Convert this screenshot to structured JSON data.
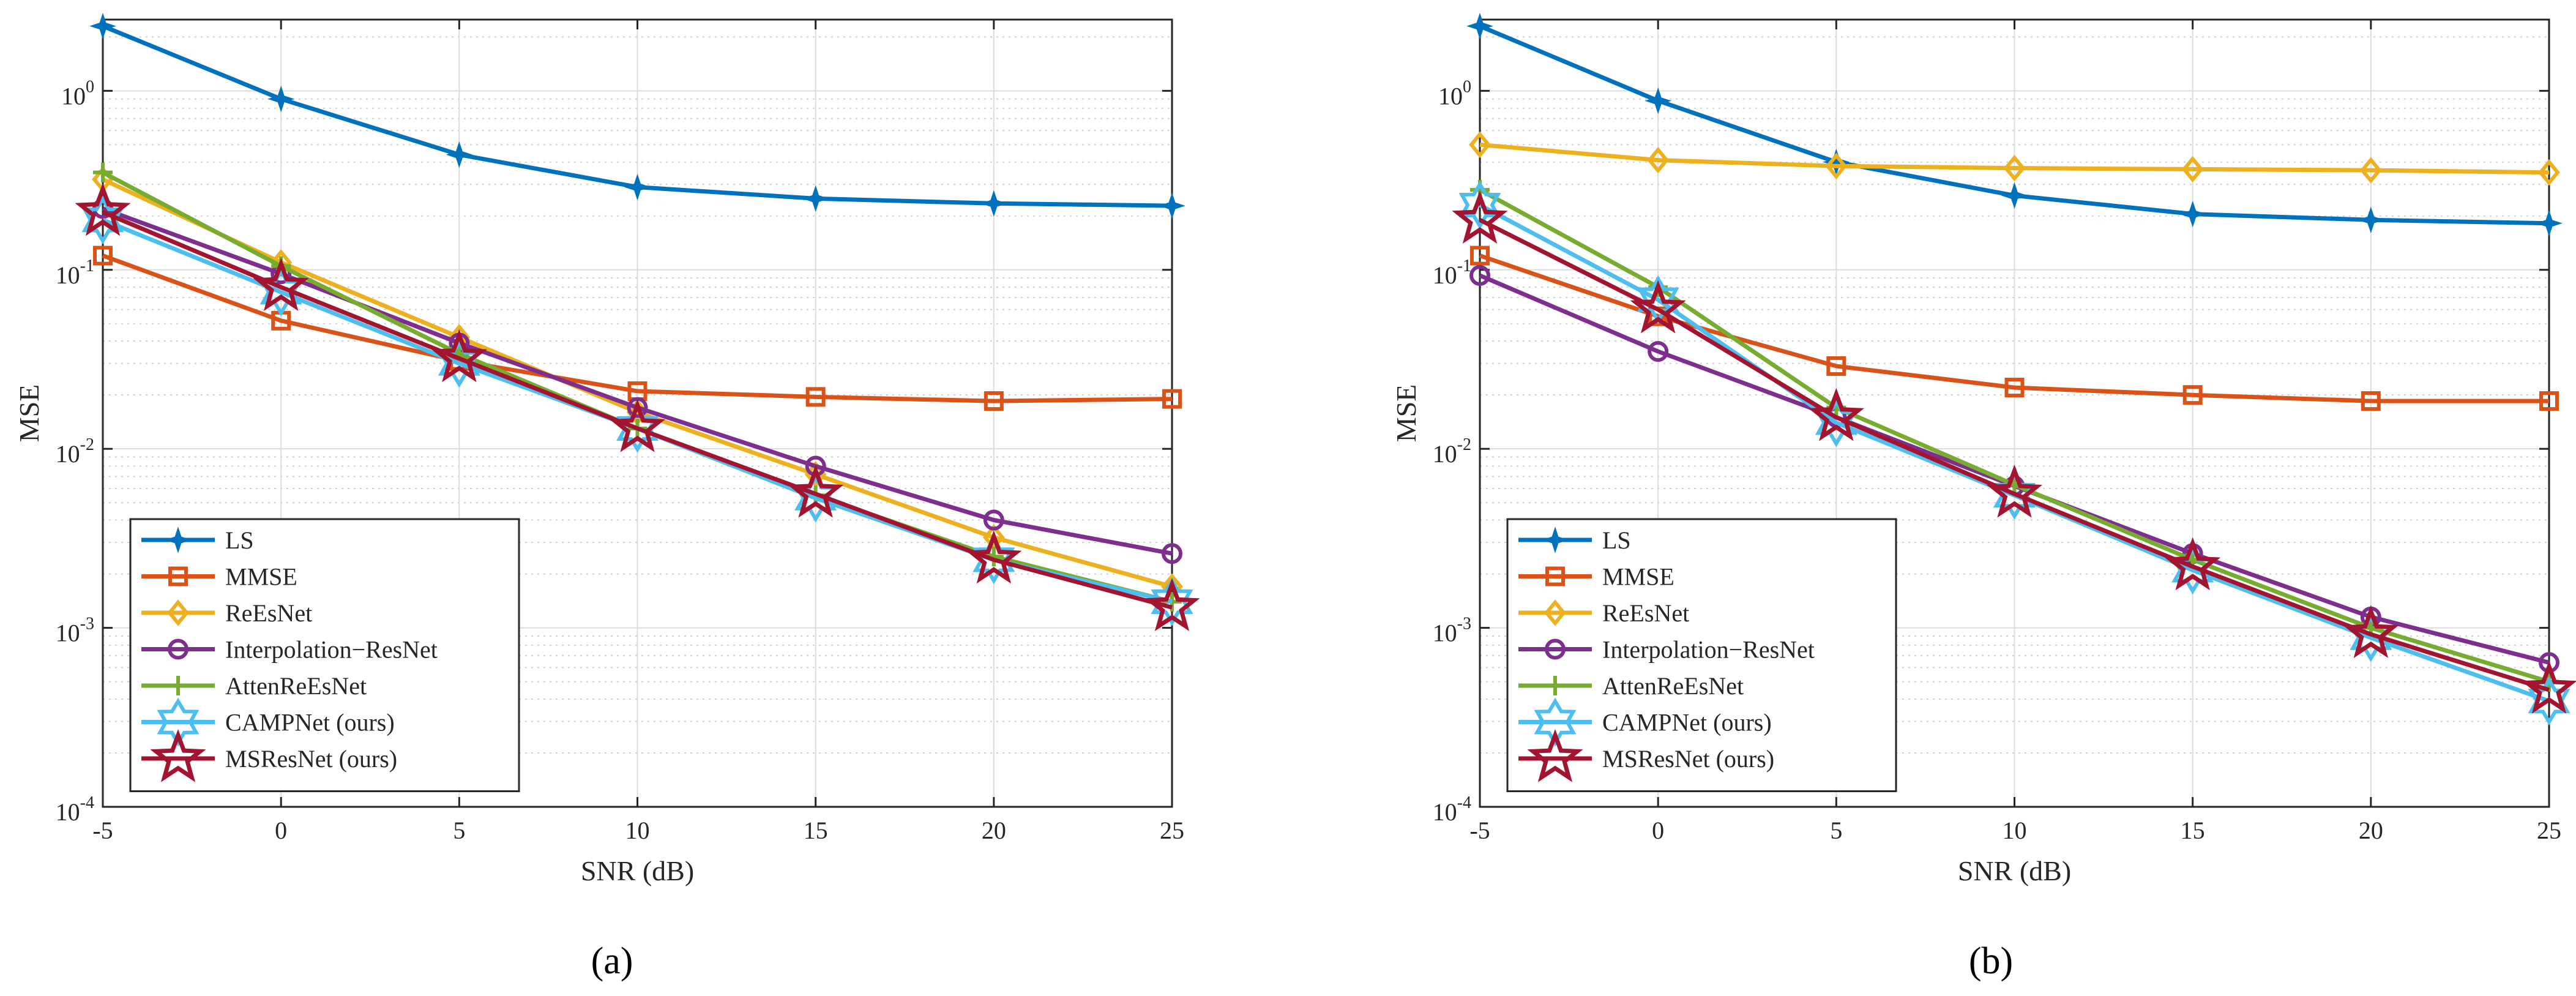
{
  "chart_data": [
    {
      "type": "line",
      "panel_label": "(a)",
      "xlabel": "SNR (dB)",
      "ylabel": "MSE",
      "yscale": "log",
      "x": [
        -5,
        0,
        5,
        10,
        15,
        20,
        25
      ],
      "xlim": [
        -5,
        25
      ],
      "ylim": [
        0.0001,
        2.5
      ],
      "xticks": [
        "-5",
        "0",
        "5",
        "10",
        "15",
        "20",
        "25"
      ],
      "yticks": [
        {
          "base": "10",
          "exp": "-4"
        },
        {
          "base": "10",
          "exp": "-3"
        },
        {
          "base": "10",
          "exp": "-2"
        },
        {
          "base": "10",
          "exp": "-1"
        },
        {
          "base": "10",
          "exp": "0"
        }
      ],
      "grid": true,
      "legend_position": "bottom-left",
      "series": [
        {
          "name": "LS",
          "color": "#0072BD",
          "marker": "star4",
          "values": [
            2.3,
            0.9,
            0.44,
            0.29,
            0.25,
            0.235,
            0.228
          ]
        },
        {
          "name": "MMSE",
          "color": "#D95319",
          "marker": "square",
          "values": [
            0.12,
            0.052,
            0.031,
            0.021,
            0.0195,
            0.0185,
            0.019
          ]
        },
        {
          "name": "ReEsNet",
          "color": "#EDB120",
          "marker": "diamond",
          "values": [
            0.32,
            0.11,
            0.042,
            0.016,
            0.0072,
            0.0032,
            0.0017
          ]
        },
        {
          "name": "Interpolation−ResNet",
          "color": "#7E2F8E",
          "marker": "circle",
          "values": [
            0.22,
            0.095,
            0.039,
            0.017,
            0.008,
            0.004,
            0.0026
          ]
        },
        {
          "name": "AttenReEsNet",
          "color": "#77AC30",
          "marker": "plus",
          "values": [
            0.35,
            0.105,
            0.034,
            0.013,
            0.0055,
            0.0025,
            0.0014
          ]
        },
        {
          "name": "CAMPNet (ours)",
          "color": "#4DBEEE",
          "marker": "hexagram",
          "values": [
            0.19,
            0.075,
            0.03,
            0.013,
            0.0053,
            0.0024,
            0.0014
          ]
        },
        {
          "name": "MSResNet (ours)",
          "color": "#A2142F",
          "marker": "pentagram",
          "values": [
            0.21,
            0.08,
            0.032,
            0.013,
            0.0056,
            0.0024,
            0.0013
          ]
        }
      ]
    },
    {
      "type": "line",
      "panel_label": "(b)",
      "xlabel": "SNR (dB)",
      "ylabel": "MSE",
      "yscale": "log",
      "x": [
        -5,
        0,
        5,
        10,
        15,
        20,
        25
      ],
      "xlim": [
        -5,
        25
      ],
      "ylim": [
        0.0001,
        2.5
      ],
      "xticks": [
        "-5",
        "0",
        "5",
        "10",
        "15",
        "20",
        "25"
      ],
      "yticks": [
        {
          "base": "10",
          "exp": "-4"
        },
        {
          "base": "10",
          "exp": "-3"
        },
        {
          "base": "10",
          "exp": "-2"
        },
        {
          "base": "10",
          "exp": "-1"
        },
        {
          "base": "10",
          "exp": "0"
        }
      ],
      "grid": true,
      "legend_position": "bottom-left",
      "series": [
        {
          "name": "LS",
          "color": "#0072BD",
          "marker": "star4",
          "values": [
            2.3,
            0.88,
            0.4,
            0.26,
            0.205,
            0.19,
            0.182
          ]
        },
        {
          "name": "MMSE",
          "color": "#D95319",
          "marker": "square",
          "values": [
            0.12,
            0.055,
            0.029,
            0.022,
            0.02,
            0.0185,
            0.0185
          ]
        },
        {
          "name": "ReEsNet",
          "color": "#EDB120",
          "marker": "diamond",
          "values": [
            0.5,
            0.41,
            0.38,
            0.37,
            0.365,
            0.36,
            0.35
          ]
        },
        {
          "name": "Interpolation−ResNet",
          "color": "#7E2F8E",
          "marker": "circle",
          "values": [
            0.093,
            0.035,
            0.015,
            0.0062,
            0.0026,
            0.00115,
            0.00064
          ]
        },
        {
          "name": "AttenReEsNet",
          "color": "#77AC30",
          "marker": "plus",
          "values": [
            0.28,
            0.08,
            0.017,
            0.0063,
            0.0024,
            0.001,
            0.0005
          ]
        },
        {
          "name": "CAMPNet (ours)",
          "color": "#4DBEEE",
          "marker": "hexagram",
          "values": [
            0.23,
            0.068,
            0.014,
            0.0055,
            0.0021,
            0.00088,
            0.00039
          ]
        },
        {
          "name": "MSResNet (ours)",
          "color": "#A2142F",
          "marker": "pentagram",
          "values": [
            0.19,
            0.06,
            0.015,
            0.0056,
            0.0022,
            0.00092,
            0.00045
          ]
        }
      ]
    }
  ]
}
